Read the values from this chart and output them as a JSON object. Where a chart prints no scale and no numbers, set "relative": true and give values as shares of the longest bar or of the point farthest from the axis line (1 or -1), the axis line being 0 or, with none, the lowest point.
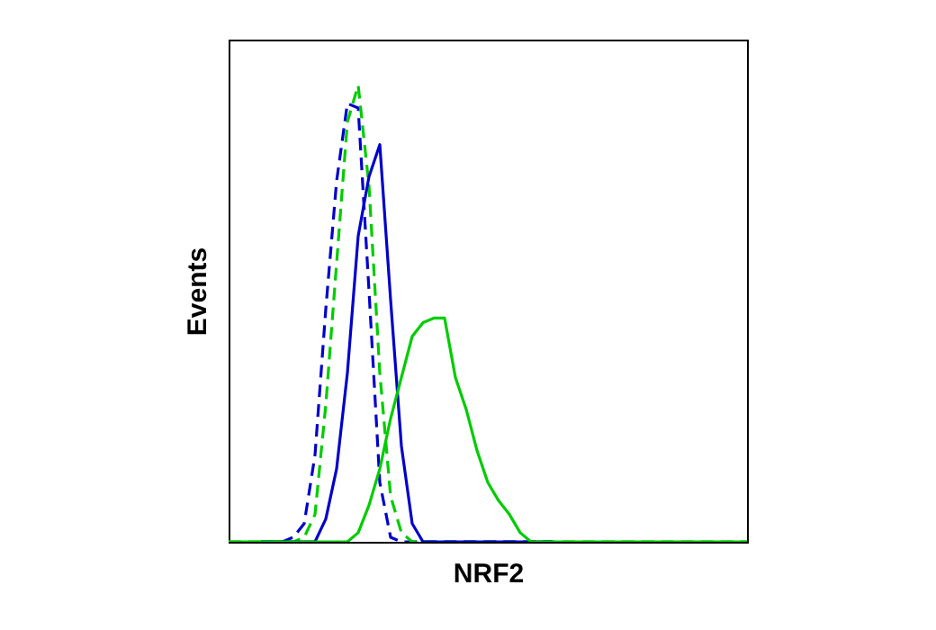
{
  "chart_data": {
    "type": "line",
    "relative": true,
    "xlabel": "NRF2",
    "ylabel": "Events",
    "categories": [
      null,
      null,
      null,
      null,
      null,
      null,
      null,
      null,
      null,
      null,
      null,
      null,
      null,
      null,
      null,
      null,
      null,
      null,
      null,
      null,
      null,
      null,
      null,
      null,
      null,
      null,
      null,
      null,
      null,
      null,
      null,
      null,
      null,
      null,
      null,
      null,
      null,
      null,
      null,
      null,
      null,
      null,
      null,
      null,
      null,
      null,
      null,
      null,
      null
    ],
    "series": [
      {
        "color": "#0000cc",
        "line_style": "dashed",
        "values": [
          null,
          null,
          null,
          0,
          0,
          0,
          0.01,
          0.04,
          0.19,
          0.51,
          0.79,
          0.96,
          0.95,
          0.55,
          0.13,
          0.01,
          0,
          0,
          0,
          0,
          0,
          0,
          0,
          0,
          0,
          0,
          0,
          0,
          0,
          0,
          0,
          null,
          null,
          null,
          null,
          null,
          null,
          null,
          null,
          null,
          null,
          null,
          null,
          null,
          null,
          null,
          null,
          null,
          null
        ]
      },
      {
        "color": "#00cc00",
        "line_style": "dashed",
        "values": [
          0,
          0,
          0,
          0,
          0,
          0,
          0,
          0.01,
          0.06,
          0.3,
          0.61,
          0.92,
          1,
          0.78,
          0.37,
          0.1,
          0.02,
          0,
          0,
          0,
          0,
          0,
          0,
          0,
          0,
          0,
          0,
          0,
          0,
          0,
          0,
          0,
          0,
          0,
          0,
          0,
          0,
          0,
          0,
          0,
          0,
          0,
          0,
          0,
          0,
          0,
          0,
          0,
          0
        ]
      },
      {
        "color": "#0000cc",
        "line_style": "solid",
        "values": [
          null,
          null,
          null,
          0,
          0,
          0,
          0,
          0,
          0,
          0.05,
          0.16,
          0.37,
          0.67,
          0.8,
          0.87,
          0.53,
          0.21,
          0.04,
          0,
          0,
          0,
          0,
          0,
          0,
          0,
          0,
          0,
          0,
          0,
          0,
          0,
          null,
          null,
          null,
          null,
          null,
          null,
          null,
          null,
          null,
          null,
          null,
          null,
          null,
          null,
          null,
          null,
          null,
          null
        ]
      },
      {
        "color": "#00cc00",
        "line_style": "solid",
        "values": [
          0,
          0,
          0,
          0,
          0,
          0,
          0,
          0,
          0,
          0,
          0,
          0,
          0.02,
          0.08,
          0.16,
          0.27,
          0.36,
          0.45,
          0.48,
          0.49,
          0.49,
          0.36,
          0.29,
          0.2,
          0.13,
          0.09,
          0.06,
          0.02,
          0,
          0,
          0,
          0,
          0,
          0,
          0,
          0,
          0,
          0,
          0,
          0,
          0,
          0,
          0,
          0,
          0,
          0,
          0,
          0,
          0
        ]
      }
    ]
  }
}
